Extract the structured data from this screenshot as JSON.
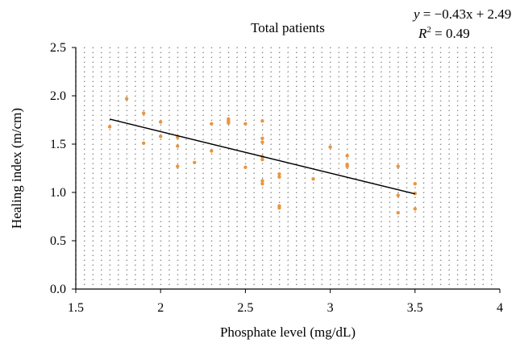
{
  "chart_data": {
    "type": "scatter",
    "title": "Total patients",
    "xlabel": "Phosphate level (mg/dL)",
    "ylabel": "Healing index (m/cm)",
    "xlim": [
      1.5,
      4
    ],
    "ylim": [
      0.0,
      2.5
    ],
    "xticks": [
      1.5,
      2,
      2.5,
      3,
      3.5,
      4
    ],
    "xtick_labels": [
      "1.5",
      "2",
      "2.5",
      "3",
      "3.5",
      "4"
    ],
    "yticks": [
      0.0,
      0.5,
      1.0,
      1.5,
      2.0,
      2.5
    ],
    "ytick_labels": [
      "0.0",
      "0.5",
      "1.0",
      "1.5",
      "2.0",
      "2.5"
    ],
    "grid": "dotted",
    "point_color": "#E8953F",
    "line_color": "#000000",
    "equation": {
      "y_label": "y",
      "equation_rest": " = −0.43x + 2.49",
      "r2_label": "R",
      "r2_sup": "2",
      "r2_rest": " = 0.49"
    },
    "trendline": {
      "slope": -0.43,
      "intercept": 2.49,
      "x_range": [
        1.7,
        3.5
      ]
    },
    "points": [
      {
        "x": 1.7,
        "y": 1.68
      },
      {
        "x": 1.8,
        "y": 1.97
      },
      {
        "x": 1.9,
        "y": 1.82
      },
      {
        "x": 1.9,
        "y": 1.51
      },
      {
        "x": 2.0,
        "y": 1.73
      },
      {
        "x": 2.0,
        "y": 1.58
      },
      {
        "x": 2.1,
        "y": 1.57
      },
      {
        "x": 2.1,
        "y": 1.48
      },
      {
        "x": 2.1,
        "y": 1.27
      },
      {
        "x": 2.2,
        "y": 1.31
      },
      {
        "x": 2.3,
        "y": 1.71
      },
      {
        "x": 2.3,
        "y": 1.43
      },
      {
        "x": 2.4,
        "y": 1.76
      },
      {
        "x": 2.4,
        "y": 1.74
      },
      {
        "x": 2.4,
        "y": 1.72
      },
      {
        "x": 2.5,
        "y": 1.71
      },
      {
        "x": 2.5,
        "y": 1.26
      },
      {
        "x": 2.6,
        "y": 1.74
      },
      {
        "x": 2.6,
        "y": 1.56
      },
      {
        "x": 2.6,
        "y": 1.52
      },
      {
        "x": 2.6,
        "y": 1.37
      },
      {
        "x": 2.6,
        "y": 1.34
      },
      {
        "x": 2.6,
        "y": 1.12
      },
      {
        "x": 2.6,
        "y": 1.09
      },
      {
        "x": 2.7,
        "y": 1.19
      },
      {
        "x": 2.7,
        "y": 1.16
      },
      {
        "x": 2.7,
        "y": 0.86
      },
      {
        "x": 2.7,
        "y": 0.84
      },
      {
        "x": 2.9,
        "y": 1.14
      },
      {
        "x": 3.0,
        "y": 1.47
      },
      {
        "x": 3.1,
        "y": 1.38
      },
      {
        "x": 3.1,
        "y": 1.29
      },
      {
        "x": 3.1,
        "y": 1.27
      },
      {
        "x": 3.4,
        "y": 1.27
      },
      {
        "x": 3.4,
        "y": 0.97
      },
      {
        "x": 3.4,
        "y": 0.79
      },
      {
        "x": 3.5,
        "y": 1.09
      },
      {
        "x": 3.5,
        "y": 0.99
      },
      {
        "x": 3.5,
        "y": 0.83
      }
    ]
  }
}
